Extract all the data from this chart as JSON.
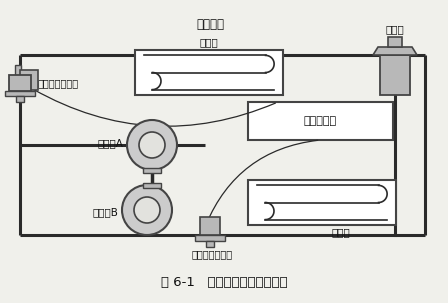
{
  "title": "图 6-1   直接膨胀供液制冷系统",
  "bg_color": "#f0f0eb",
  "line_color": "#2a2a2a",
  "component_fill": "#b8b8b8",
  "component_edge": "#444444",
  "box_fill": "#ffffff",
  "text_color": "#111111",
  "labels": {
    "top_title": "制冷循环",
    "evaporator": "蒸发器",
    "expansion_valve": "膨胀阀",
    "controller": "制冷控制器",
    "condenser": "冷凝器",
    "compressor_A": "压缩机A",
    "compressor_B": "压缩机B",
    "back_pressure": "回气压力检测头",
    "exhaust_pressure": "排气压力检测头"
  }
}
